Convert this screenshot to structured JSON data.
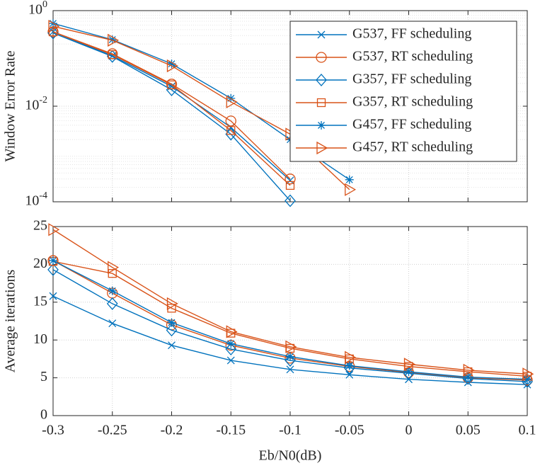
{
  "chart_data": [
    {
      "type": "line",
      "ylabel": "Window Error Rate",
      "yscale": "log",
      "x": [
        -0.3,
        -0.25,
        -0.2,
        -0.15,
        -0.1,
        -0.05,
        0,
        0.05,
        0.1
      ],
      "xlim": [
        -0.3,
        0.1
      ],
      "xticks": [
        -0.3,
        -0.25,
        -0.2,
        -0.15,
        -0.1,
        -0.05,
        0,
        0.05,
        0.1
      ],
      "ylim": [
        0.0001,
        1
      ],
      "yticks": [
        {
          "value": 1,
          "label": "10^0"
        },
        {
          "value": 0.01,
          "label": "10^-2"
        },
        {
          "value": 0.0001,
          "label": "10^-4"
        }
      ],
      "grid": true,
      "minor_grid": true,
      "legend": "northeast",
      "series": [
        {
          "name": "G537, FF scheduling",
          "color": "#0072BD",
          "marker": "x",
          "values": [
            0.36,
            0.113,
            0.026,
            0.0036,
            0.00028,
            null,
            null,
            null,
            null
          ]
        },
        {
          "name": "G537, RT scheduling",
          "color": "#D95319",
          "marker": "o",
          "values": [
            0.36,
            0.125,
            0.029,
            0.0049,
            0.0003,
            null,
            null,
            null,
            null
          ]
        },
        {
          "name": "G357, FF scheduling",
          "color": "#0072BD",
          "marker": "d",
          "values": [
            0.34,
            0.11,
            0.022,
            0.0026,
            0.000105,
            null,
            null,
            null,
            null
          ]
        },
        {
          "name": "G357, RT scheduling",
          "color": "#D95319",
          "marker": "s",
          "values": [
            0.36,
            0.12,
            0.028,
            0.0031,
            0.00022,
            null,
            null,
            null,
            null
          ]
        },
        {
          "name": "G457, FF scheduling",
          "color": "#0072BD",
          "marker": "*",
          "values": [
            0.54,
            0.247,
            0.077,
            0.0146,
            0.002,
            0.00029,
            null,
            null,
            null
          ]
        },
        {
          "name": "G457, RT scheduling",
          "color": "#D95319",
          "marker": ">",
          "values": [
            0.47,
            0.24,
            0.07,
            0.0123,
            0.0026,
            0.00018,
            null,
            null,
            null
          ]
        }
      ]
    },
    {
      "type": "line",
      "ylabel": "Average iterations",
      "xlabel": "Eb/N0(dB)",
      "x": [
        -0.3,
        -0.25,
        -0.2,
        -0.15,
        -0.1,
        -0.05,
        0,
        0.05,
        0.1
      ],
      "xlim": [
        -0.3,
        0.1
      ],
      "xticks": [
        -0.3,
        -0.25,
        -0.2,
        -0.15,
        -0.1,
        -0.05,
        0,
        0.05,
        0.1
      ],
      "ylim": [
        0,
        25
      ],
      "yticks": [
        0,
        5,
        10,
        15,
        20,
        25
      ],
      "grid": true,
      "series": [
        {
          "color": "#0072BD",
          "marker": "x",
          "values": [
            15.8,
            12.2,
            9.3,
            7.3,
            6.1,
            5.4,
            4.8,
            4.4,
            4.1
          ]
        },
        {
          "color": "#D95319",
          "marker": "o",
          "values": [
            20.5,
            16.2,
            12.0,
            9.3,
            7.6,
            6.5,
            5.7,
            5.0,
            4.7
          ]
        },
        {
          "color": "#0072BD",
          "marker": "d",
          "values": [
            19.3,
            14.8,
            11.3,
            8.8,
            7.3,
            6.3,
            5.6,
            4.9,
            4.5
          ]
        },
        {
          "color": "#D95319",
          "marker": "s",
          "values": [
            20.4,
            18.8,
            14.2,
            10.9,
            8.9,
            7.5,
            6.5,
            5.8,
            5.2
          ]
        },
        {
          "color": "#0072BD",
          "marker": "*",
          "values": [
            20.5,
            16.5,
            12.3,
            9.5,
            7.8,
            6.6,
            5.8,
            5.1,
            4.8
          ]
        },
        {
          "color": "#D95319",
          "marker": ">",
          "values": [
            24.6,
            19.6,
            14.8,
            11.1,
            9.1,
            7.7,
            6.8,
            6.0,
            5.5
          ]
        }
      ]
    }
  ]
}
